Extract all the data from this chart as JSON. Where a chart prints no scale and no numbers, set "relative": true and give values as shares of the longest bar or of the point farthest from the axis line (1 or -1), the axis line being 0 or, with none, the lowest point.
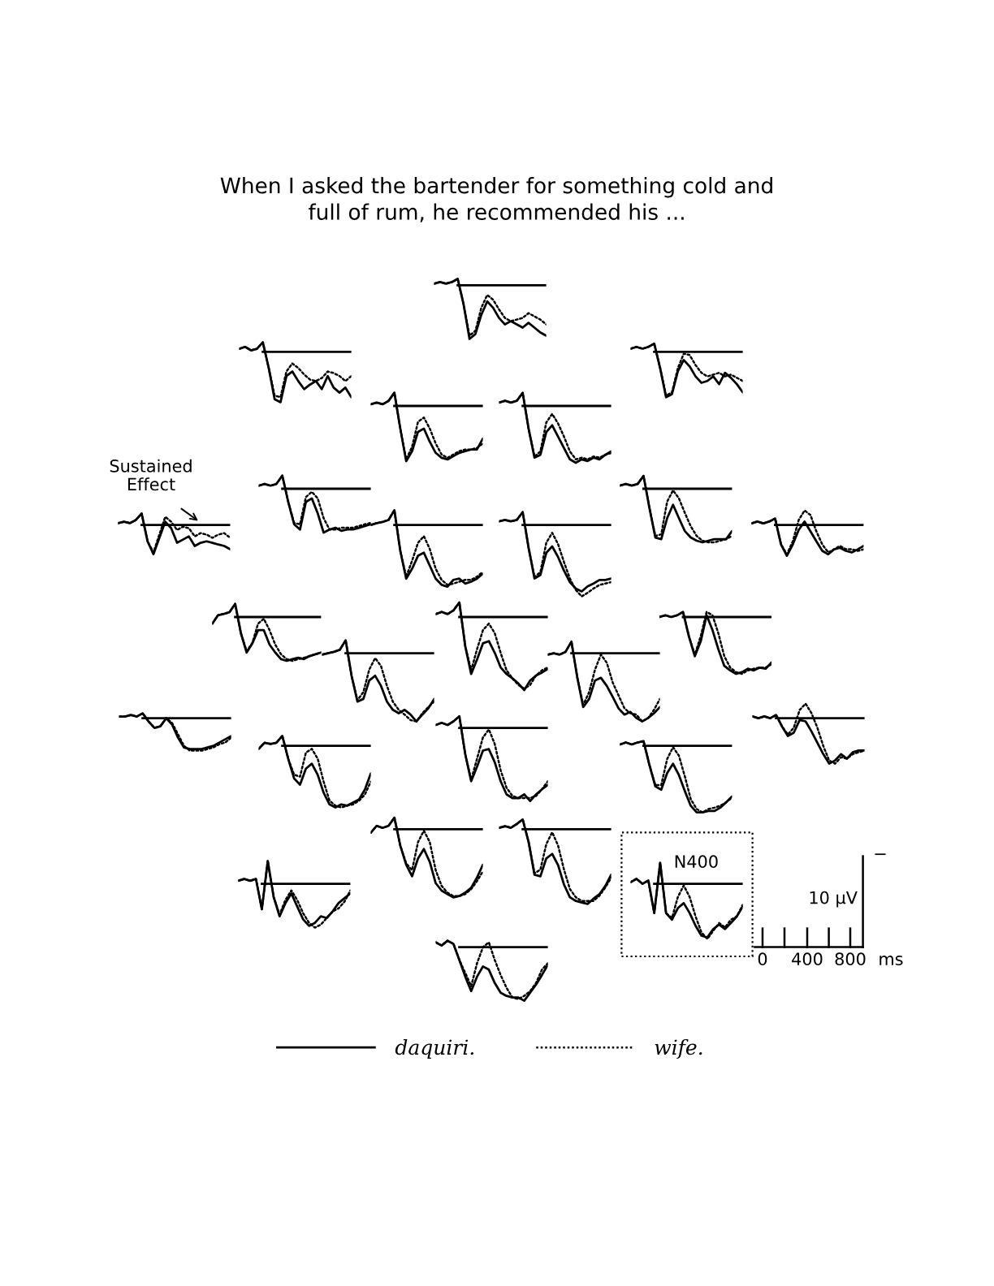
{
  "chart_data": [
    {
      "type": "line",
      "relative": true,
      "title": "When I asked the bartender for something cold and\nfull of rum, he recommended his ...",
      "legend": "bottom",
      "categories": [
        null,
        null,
        null,
        null,
        null,
        null,
        null,
        null,
        null,
        null,
        null,
        null,
        null,
        null,
        null,
        null,
        null,
        null,
        null,
        null
      ],
      "ref_lines": [
        {
          "axis": "y",
          "value": 0,
          "color": "#000000"
        }
      ],
      "series": [
        {
          "name": "daquiri.",
          "color": "#000000",
          "line_style": "solid",
          "values": [
            0.03,
            0.06,
            0.03,
            0.06,
            0.12,
            -0.36,
            -1,
            -0.91,
            -0.55,
            -0.3,
            -0.42,
            -0.61,
            -0.73,
            -0.67,
            -0.73,
            -0.79,
            -0.7,
            -0.79,
            -0.88,
            -0.94
          ]
        },
        {
          "name": "wife.",
          "color": "#000000",
          "line_style": "dotted",
          "values": [
            0.03,
            0.06,
            0.03,
            0.06,
            0.12,
            -0.36,
            -0.94,
            -0.85,
            -0.42,
            -0.18,
            -0.27,
            -0.45,
            -0.61,
            -0.67,
            -0.64,
            -0.61,
            -0.52,
            -0.58,
            -0.64,
            -0.73
          ]
        }
      ]
    },
    {
      "type": "line",
      "relative": true,
      "categories": [
        null,
        null,
        null,
        null,
        null,
        null,
        null,
        null,
        null,
        null,
        null,
        null,
        null,
        null,
        null,
        null,
        null,
        null,
        null,
        null
      ],
      "ref_lines": [
        {
          "axis": "y",
          "value": 0,
          "color": "#000000"
        }
      ],
      "series": [
        {
          "color": "#000000",
          "line_style": "solid",
          "values": [
            0.06,
            0.1,
            0.03,
            0.06,
            0.19,
            -0.32,
            -0.94,
            -1,
            -0.48,
            -0.39,
            -0.58,
            -0.74,
            -0.65,
            -0.58,
            -0.74,
            -0.48,
            -0.71,
            -0.81,
            -0.71,
            -0.9
          ]
        },
        {
          "color": "#000000",
          "line_style": "dotted",
          "values": [
            0.06,
            0.1,
            0.03,
            0.06,
            0.19,
            -0.32,
            -0.87,
            -0.9,
            -0.39,
            -0.23,
            -0.32,
            -0.45,
            -0.55,
            -0.58,
            -0.52,
            -0.39,
            -0.42,
            -0.48,
            -0.58,
            -0.48
          ]
        }
      ]
    },
    {
      "type": "line",
      "relative": true,
      "categories": [
        null,
        null,
        null,
        null,
        null,
        null,
        null,
        null,
        null,
        null,
        null,
        null,
        null,
        null,
        null,
        null,
        null,
        null,
        null,
        null
      ],
      "ref_lines": [
        {
          "axis": "y",
          "value": 0,
          "color": "#000000"
        }
      ],
      "series": [
        {
          "color": "#000000",
          "line_style": "solid",
          "values": [
            0.07,
            0.11,
            0.07,
            0.11,
            0.18,
            -0.36,
            -1,
            -0.93,
            -0.43,
            -0.18,
            -0.32,
            -0.54,
            -0.68,
            -0.64,
            -0.54,
            -0.71,
            -0.46,
            -0.57,
            -0.71,
            -0.89
          ]
        },
        {
          "color": "#000000",
          "line_style": "dotted",
          "values": [
            0.07,
            0.11,
            0.07,
            0.11,
            0.18,
            -0.36,
            -0.96,
            -0.89,
            -0.36,
            -0.04,
            -0.07,
            -0.29,
            -0.46,
            -0.54,
            -0.5,
            -0.46,
            -0.54,
            -0.5,
            -0.57,
            -0.64
          ]
        }
      ]
    },
    {
      "type": "line",
      "relative": true,
      "categories": [
        null,
        null,
        null,
        null,
        null,
        null,
        null,
        null,
        null,
        null,
        null,
        null,
        null,
        null,
        null,
        null,
        null,
        null,
        null,
        null
      ],
      "ref_lines": [
        {
          "axis": "y",
          "value": 0,
          "color": "#000000"
        }
      ],
      "series": [
        {
          "color": "#000000",
          "line_style": "solid",
          "values": [
            0.03,
            0.06,
            0.03,
            0.09,
            0.24,
            -0.41,
            -1,
            -0.82,
            -0.47,
            -0.41,
            -0.65,
            -0.85,
            -0.94,
            -0.97,
            -0.91,
            -0.85,
            -0.82,
            -0.79,
            -0.79,
            -0.59
          ]
        },
        {
          "color": "#000000",
          "line_style": "dotted",
          "values": [
            0.03,
            0.06,
            0.03,
            0.09,
            0.24,
            -0.41,
            -0.97,
            -0.74,
            -0.29,
            -0.21,
            -0.41,
            -0.68,
            -0.88,
            -0.94,
            -0.88,
            -0.82,
            -0.79,
            -0.79,
            -0.76,
            -0.68
          ]
        }
      ]
    },
    {
      "type": "line",
      "relative": true,
      "categories": [
        null,
        null,
        null,
        null,
        null,
        null,
        null,
        null,
        null,
        null,
        null,
        null,
        null,
        null,
        null,
        null,
        null,
        null,
        null,
        null
      ],
      "ref_lines": [
        {
          "axis": "y",
          "value": 0,
          "color": "#000000"
        }
      ],
      "series": [
        {
          "color": "#000000",
          "line_style": "solid",
          "values": [
            0.06,
            0.09,
            0.06,
            0.09,
            0.23,
            -0.4,
            -0.91,
            -0.86,
            -0.46,
            -0.34,
            -0.54,
            -0.74,
            -0.94,
            -1,
            -0.94,
            -0.97,
            -0.91,
            -0.94,
            -0.86,
            -0.8
          ]
        },
        {
          "color": "#000000",
          "line_style": "dotted",
          "values": [
            0.06,
            0.09,
            0.06,
            0.09,
            0.23,
            -0.4,
            -0.89,
            -0.8,
            -0.29,
            -0.14,
            -0.31,
            -0.54,
            -0.8,
            -0.94,
            -0.91,
            -0.94,
            -0.89,
            -0.91,
            -0.86,
            -0.83
          ]
        }
      ]
    },
    {
      "type": "line",
      "relative": true,
      "categories": [
        null,
        null,
        null,
        null,
        null,
        null,
        null,
        null,
        null,
        null,
        null,
        null,
        null,
        null,
        null,
        null,
        null,
        null,
        null,
        null
      ],
      "ref_lines": [
        {
          "axis": "y",
          "value": 0,
          "color": "#000000"
        }
      ],
      "series": [
        {
          "color": "#000000",
          "line_style": "solid",
          "values": [
            0.07,
            0.11,
            0.07,
            0.11,
            0.3,
            -0.3,
            -0.81,
            -0.93,
            -0.3,
            -0.22,
            -0.56,
            -1,
            -0.93,
            -0.89,
            -0.96,
            -0.93,
            -0.93,
            -0.89,
            -0.85,
            -0.81
          ]
        },
        {
          "color": "#000000",
          "line_style": "dotted",
          "values": [
            0.07,
            0.11,
            0.07,
            0.11,
            0.3,
            -0.3,
            -0.78,
            -0.81,
            -0.19,
            -0.07,
            -0.22,
            -0.67,
            -0.93,
            -0.93,
            -0.89,
            -0.89,
            -0.89,
            -0.85,
            -0.81,
            -0.78
          ]
        }
      ]
    },
    {
      "type": "line",
      "relative": true,
      "categories": [
        null,
        null,
        null,
        null,
        null,
        null,
        null,
        null,
        null,
        null,
        null,
        null,
        null,
        null,
        null,
        null,
        null,
        null,
        null,
        null
      ],
      "ref_lines": [
        {
          "axis": "y",
          "value": 0,
          "color": "#000000"
        }
      ],
      "series": [
        {
          "color": "#000000",
          "line_style": "solid",
          "values": [
            0.06,
            0.09,
            0.06,
            0.09,
            0.24,
            -0.36,
            -0.91,
            -0.94,
            -0.55,
            -0.3,
            -0.55,
            -0.79,
            -0.91,
            -0.97,
            -1,
            -0.97,
            -0.94,
            -0.94,
            -0.94,
            -0.79
          ]
        },
        {
          "color": "#000000",
          "line_style": "dotted",
          "values": [
            0.06,
            0.09,
            0.06,
            0.09,
            0.24,
            -0.36,
            -0.88,
            -0.85,
            -0.24,
            -0.03,
            -0.18,
            -0.45,
            -0.7,
            -0.88,
            -0.97,
            -1,
            -1,
            -0.97,
            -0.94,
            -0.88
          ]
        }
      ]
    },
    {
      "type": "line",
      "relative": true,
      "annotations": [
        "Sustained\nEffect"
      ],
      "categories": [
        null,
        null,
        null,
        null,
        null,
        null,
        null,
        null,
        null,
        null,
        null,
        null,
        null,
        null,
        null,
        null,
        null,
        null,
        null,
        null
      ],
      "ref_lines": [
        {
          "axis": "y",
          "value": 0,
          "color": "#000000"
        }
      ],
      "series": [
        {
          "color": "#000000",
          "line_style": "solid",
          "values": [
            0.06,
            0.11,
            0.06,
            0.17,
            0.39,
            -0.56,
            -1,
            -0.44,
            0.11,
            -0.11,
            -0.61,
            -0.5,
            -0.39,
            -0.72,
            -0.61,
            -0.56,
            -0.61,
            -0.67,
            -0.72,
            -0.83
          ]
        },
        {
          "color": "#000000",
          "line_style": "dotted",
          "values": [
            0.06,
            0.11,
            0.06,
            0.17,
            0.39,
            -0.56,
            -0.94,
            -0.33,
            0.28,
            0.11,
            -0.17,
            -0.06,
            -0.11,
            -0.39,
            -0.28,
            -0.33,
            -0.44,
            -0.33,
            -0.28,
            -0.44
          ]
        }
      ]
    },
    {
      "type": "line",
      "relative": true,
      "categories": [
        null,
        null,
        null,
        null,
        null,
        null,
        null,
        null,
        null,
        null,
        null,
        null,
        null,
        null,
        null,
        null,
        null,
        null,
        null,
        null
      ],
      "ref_lines": [
        {
          "axis": "y",
          "value": 0,
          "color": "#000000"
        }
      ],
      "series": [
        {
          "color": "#000000",
          "line_style": "solid",
          "values": [
            0,
            0.03,
            0.05,
            0.08,
            0.24,
            -0.42,
            -0.87,
            -0.71,
            -0.5,
            -0.45,
            -0.66,
            -0.87,
            -0.97,
            -1,
            -0.89,
            -0.87,
            -0.95,
            -0.92,
            -0.87,
            -0.79
          ]
        },
        {
          "color": "#000000",
          "line_style": "dotted",
          "values": [
            0,
            0.03,
            0.05,
            0.08,
            0.24,
            -0.42,
            -0.84,
            -0.58,
            -0.29,
            -0.18,
            -0.39,
            -0.71,
            -0.89,
            -0.97,
            -0.95,
            -0.92,
            -0.89,
            -0.89,
            -0.84,
            -0.76
          ]
        }
      ]
    },
    {
      "type": "line",
      "relative": true,
      "categories": [
        null,
        null,
        null,
        null,
        null,
        null,
        null,
        null,
        null,
        null,
        null,
        null,
        null,
        null,
        null,
        null,
        null,
        null,
        null,
        null
      ],
      "ref_lines": [
        {
          "axis": "y",
          "value": 0,
          "color": "#000000"
        }
      ],
      "series": [
        {
          "color": "#000000",
          "line_style": "solid",
          "values": [
            0.05,
            0.07,
            0.05,
            0.07,
            0.18,
            -0.32,
            -0.75,
            -0.7,
            -0.39,
            -0.3,
            -0.45,
            -0.64,
            -0.8,
            -0.89,
            -0.93,
            -0.86,
            -0.82,
            -0.77,
            -0.77,
            -0.75
          ]
        },
        {
          "color": "#000000",
          "line_style": "dotted",
          "values": [
            0.05,
            0.07,
            0.05,
            0.07,
            0.18,
            -0.32,
            -0.73,
            -0.66,
            -0.25,
            -0.11,
            -0.27,
            -0.52,
            -0.75,
            -0.91,
            -1,
            -0.95,
            -0.89,
            -0.84,
            -0.82,
            -0.8
          ]
        }
      ]
    },
    {
      "type": "line",
      "relative": true,
      "categories": [
        null,
        null,
        null,
        null,
        null,
        null,
        null,
        null,
        null,
        null,
        null,
        null,
        null,
        null,
        null,
        null,
        null,
        null,
        null,
        null
      ],
      "ref_lines": [
        {
          "axis": "y",
          "value": 0,
          "color": "#000000"
        }
      ],
      "series": [
        {
          "color": "#000000",
          "line_style": "solid",
          "values": [
            0.05,
            0.11,
            0.05,
            0.11,
            0.21,
            -0.63,
            -1,
            -0.63,
            -0.16,
            0.11,
            -0.21,
            -0.53,
            -0.84,
            -0.95,
            -0.79,
            -0.74,
            -0.84,
            -0.89,
            -0.79,
            -0.68
          ]
        },
        {
          "color": "#000000",
          "line_style": "dotted",
          "values": [
            0.05,
            0.11,
            0.05,
            0.11,
            0.21,
            -0.63,
            -0.95,
            -0.53,
            0.16,
            0.47,
            0.32,
            -0.21,
            -0.63,
            -0.89,
            -0.79,
            -0.68,
            -0.79,
            -0.79,
            -0.84,
            -0.79
          ]
        }
      ]
    },
    {
      "type": "line",
      "relative": true,
      "categories": [
        null,
        null,
        null,
        null,
        null,
        null,
        null,
        null,
        null,
        null,
        null,
        null,
        null,
        null,
        null,
        null,
        null,
        null,
        null,
        null
      ],
      "ref_lines": [
        {
          "axis": "y",
          "value": 0,
          "color": "#000000"
        }
      ],
      "series": [
        {
          "color": "#000000",
          "line_style": "solid",
          "values": [
            -0.15,
            0.04,
            0.07,
            0.11,
            0.3,
            -0.37,
            -0.81,
            -0.6,
            -0.3,
            -0.3,
            -0.63,
            -0.81,
            -0.96,
            -1,
            -0.96,
            -0.93,
            -0.96,
            -0.89,
            -0.85,
            -0.81
          ]
        },
        {
          "color": "#000000",
          "line_style": "dotted",
          "values": [
            -0.15,
            0.04,
            0.07,
            0.11,
            0.3,
            -0.37,
            -0.78,
            -0.59,
            -0.15,
            -0.04,
            -0.3,
            -0.63,
            -0.85,
            -0.96,
            -1,
            -0.96,
            -0.93,
            -0.89,
            -0.85,
            -0.81
          ]
        }
      ]
    },
    {
      "type": "line",
      "relative": true,
      "categories": [
        null,
        null,
        null,
        null,
        null,
        null,
        null,
        null,
        null,
        null,
        null,
        null,
        null,
        null,
        null,
        null,
        null,
        null,
        null,
        null
      ],
      "ref_lines": [
        {
          "axis": "y",
          "value": 0,
          "color": "#000000"
        }
      ],
      "series": [
        {
          "color": "#000000",
          "line_style": "solid",
          "values": [
            0.04,
            0.07,
            0.04,
            0.09,
            0.2,
            -0.4,
            -0.78,
            -0.58,
            -0.36,
            -0.33,
            -0.49,
            -0.69,
            -0.78,
            -0.84,
            -0.91,
            -1,
            -0.87,
            -0.8,
            -0.76,
            -0.71
          ]
        },
        {
          "color": "#000000",
          "line_style": "dotted",
          "values": [
            0.04,
            0.07,
            0.04,
            0.09,
            0.2,
            -0.4,
            -0.73,
            -0.44,
            -0.18,
            -0.09,
            -0.22,
            -0.49,
            -0.73,
            -0.84,
            -0.93,
            -0.98,
            -0.93,
            -0.8,
            -0.73,
            -0.69
          ]
        }
      ]
    },
    {
      "type": "line",
      "relative": true,
      "categories": [
        null,
        null,
        null,
        null,
        null,
        null,
        null,
        null,
        null,
        null,
        null,
        null,
        null,
        null,
        null,
        null,
        null,
        null,
        null,
        null
      ],
      "ref_lines": [
        {
          "axis": "y",
          "value": 0,
          "color": "#000000"
        }
      ],
      "series": [
        {
          "color": "#000000",
          "line_style": "solid",
          "values": [
            0,
            0.03,
            0,
            0.03,
            0.09,
            -0.34,
            -0.69,
            -0.43,
            0.03,
            -0.23,
            -0.57,
            -0.86,
            -0.94,
            -1,
            -0.97,
            -0.91,
            -0.94,
            -0.89,
            -0.91,
            -0.8
          ]
        },
        {
          "color": "#000000",
          "line_style": "dotted",
          "values": [
            0,
            0.03,
            0,
            0.03,
            0.09,
            -0.34,
            -0.66,
            -0.34,
            0.09,
            0.03,
            -0.29,
            -0.69,
            -0.89,
            -0.97,
            -1,
            -0.94,
            -0.91,
            -0.89,
            -0.89,
            -0.83
          ]
        }
      ]
    },
    {
      "type": "line",
      "relative": true,
      "categories": [
        null,
        null,
        null,
        null,
        null,
        null,
        null,
        null,
        null,
        null,
        null,
        null,
        null,
        null,
        null,
        null,
        null,
        null,
        null,
        null
      ],
      "ref_lines": [
        {
          "axis": "y",
          "value": 0,
          "color": "#000000"
        }
      ],
      "series": [
        {
          "color": "#000000",
          "line_style": "solid",
          "values": [
            -0.02,
            0,
            0.02,
            0.05,
            0.19,
            -0.33,
            -0.71,
            -0.67,
            -0.4,
            -0.33,
            -0.48,
            -0.71,
            -0.83,
            -0.88,
            -0.83,
            -0.9,
            -1,
            -0.9,
            -0.81,
            -0.67
          ]
        },
        {
          "color": "#000000",
          "line_style": "dotted",
          "values": [
            -0.02,
            0,
            0.02,
            0.05,
            0.19,
            -0.33,
            -0.69,
            -0.57,
            -0.24,
            -0.07,
            -0.19,
            -0.48,
            -0.71,
            -0.83,
            -0.9,
            -0.98,
            -1,
            -0.88,
            -0.79,
            -0.71
          ]
        }
      ]
    },
    {
      "type": "line",
      "relative": true,
      "categories": [
        null,
        null,
        null,
        null,
        null,
        null,
        null,
        null,
        null,
        null,
        null,
        null,
        null,
        null,
        null,
        null,
        null,
        null,
        null,
        null
      ],
      "ref_lines": [
        {
          "axis": "y",
          "value": 0,
          "color": "#000000"
        }
      ],
      "series": [
        {
          "color": "#000000",
          "line_style": "solid",
          "values": [
            -0.02,
            0,
            -0.02,
            0.02,
            0.17,
            -0.36,
            -0.79,
            -0.67,
            -0.4,
            -0.36,
            -0.48,
            -0.64,
            -0.81,
            -0.9,
            -0.86,
            -0.95,
            -1,
            -0.95,
            -0.88,
            -0.79
          ]
        },
        {
          "color": "#000000",
          "line_style": "dotted",
          "values": [
            -0.02,
            0,
            -0.02,
            0.02,
            0.17,
            -0.36,
            -0.76,
            -0.57,
            -0.24,
            -0.02,
            -0.14,
            -0.43,
            -0.62,
            -0.81,
            -0.88,
            -0.9,
            -1,
            -0.95,
            -0.83,
            -0.67
          ]
        }
      ]
    },
    {
      "type": "line",
      "relative": true,
      "categories": [
        null,
        null,
        null,
        null,
        null,
        null,
        null,
        null,
        null,
        null,
        null,
        null,
        null,
        null,
        null,
        null,
        null,
        null,
        null,
        null
      ],
      "ref_lines": [
        {
          "axis": "y",
          "value": 0,
          "color": "#000000"
        }
      ],
      "series": [
        {
          "color": "#000000",
          "line_style": "solid",
          "values": [
            0.05,
            0.05,
            0.1,
            0.05,
            0.15,
            -0.1,
            -0.3,
            -0.25,
            0,
            -0.2,
            -0.6,
            -0.9,
            -0.95,
            -0.95,
            -0.95,
            -0.9,
            -0.85,
            -0.75,
            -0.65,
            -0.55
          ]
        },
        {
          "color": "#000000",
          "line_style": "dotted",
          "values": [
            0.05,
            0.05,
            0.1,
            0.05,
            0.15,
            -0.1,
            -0.3,
            -0.25,
            0,
            -0.15,
            -0.5,
            -0.85,
            -1,
            -1,
            -1,
            -0.95,
            -0.9,
            -0.8,
            -0.75,
            -0.6
          ]
        }
      ]
    },
    {
      "type": "line",
      "relative": true,
      "categories": [
        null,
        null,
        null,
        null,
        null,
        null,
        null,
        null,
        null,
        null,
        null,
        null,
        null,
        null,
        null,
        null,
        null,
        null,
        null,
        null
      ],
      "ref_lines": [
        {
          "axis": "y",
          "value": 0,
          "color": "#000000"
        }
      ],
      "series": [
        {
          "color": "#000000",
          "line_style": "solid",
          "values": [
            0.04,
            0,
            0.04,
            0,
            0.07,
            -0.18,
            -0.39,
            -0.32,
            -0.04,
            -0.07,
            -0.29,
            -0.54,
            -0.79,
            -1,
            -0.93,
            -0.79,
            -0.89,
            -0.75,
            -0.71,
            -0.71
          ]
        },
        {
          "color": "#000000",
          "line_style": "dotted",
          "values": [
            0.04,
            0,
            0.04,
            0,
            0.07,
            -0.18,
            -0.36,
            -0.21,
            0.18,
            0.32,
            0.11,
            -0.21,
            -0.61,
            -0.93,
            -1,
            -0.86,
            -0.89,
            -0.79,
            -0.75,
            -0.71
          ]
        }
      ]
    },
    {
      "type": "line",
      "relative": true,
      "categories": [
        null,
        null,
        null,
        null,
        null,
        null,
        null,
        null,
        null,
        null,
        null,
        null,
        null,
        null,
        null,
        null,
        null,
        null,
        null,
        null
      ],
      "ref_lines": [
        {
          "axis": "y",
          "value": 0,
          "color": "#000000"
        }
      ],
      "series": [
        {
          "color": "#000000",
          "line_style": "solid",
          "values": [
            0.04,
            0.07,
            0.04,
            0.09,
            0.16,
            -0.36,
            -0.73,
            -0.53,
            -0.31,
            -0.29,
            -0.47,
            -0.73,
            -0.91,
            -0.96,
            -0.96,
            -0.91,
            -1,
            -0.91,
            -0.84,
            -0.78
          ]
        },
        {
          "color": "#000000",
          "line_style": "dotted",
          "values": [
            0.04,
            0.07,
            0.04,
            0.09,
            0.16,
            -0.36,
            -0.71,
            -0.42,
            -0.13,
            -0.02,
            -0.22,
            -0.58,
            -0.82,
            -0.93,
            -0.96,
            -0.96,
            -0.96,
            -0.93,
            -0.84,
            -0.73
          ]
        }
      ]
    },
    {
      "type": "line",
      "relative": true,
      "categories": [
        null,
        null,
        null,
        null,
        null,
        null,
        null,
        null,
        null,
        null,
        null,
        null,
        null,
        null,
        null,
        null,
        null,
        null,
        null,
        null
      ],
      "ref_lines": [
        {
          "axis": "y",
          "value": 0,
          "color": "#000000"
        }
      ],
      "series": [
        {
          "color": "#000000",
          "line_style": "solid",
          "values": [
            -0.05,
            0.05,
            0.03,
            0.05,
            0.16,
            -0.21,
            -0.53,
            -0.63,
            -0.37,
            -0.29,
            -0.47,
            -0.76,
            -0.95,
            -1,
            -0.95,
            -0.97,
            -0.92,
            -0.87,
            -0.71,
            -0.45
          ]
        },
        {
          "color": "#000000",
          "line_style": "dotted",
          "values": [
            -0.05,
            0.05,
            0.03,
            0.05,
            0.16,
            -0.21,
            -0.47,
            -0.5,
            -0.11,
            -0.05,
            -0.21,
            -0.58,
            -0.89,
            -0.97,
            -1,
            -0.97,
            -0.95,
            -0.89,
            -0.79,
            -0.58
          ]
        }
      ]
    },
    {
      "type": "line",
      "relative": true,
      "categories": [
        null,
        null,
        null,
        null,
        null,
        null,
        null,
        null,
        null,
        null,
        null,
        null,
        null,
        null,
        null,
        null,
        null,
        null,
        null,
        null
      ],
      "ref_lines": [
        {
          "axis": "y",
          "value": 0,
          "color": "#000000"
        }
      ],
      "series": [
        {
          "color": "#000000",
          "line_style": "solid",
          "values": [
            0.02,
            0.05,
            0.02,
            0.05,
            0.07,
            -0.29,
            -0.61,
            -0.66,
            -0.41,
            -0.27,
            -0.44,
            -0.68,
            -0.9,
            -1,
            -1,
            -0.98,
            -0.98,
            -0.93,
            -0.85,
            -0.76
          ]
        },
        {
          "color": "#000000",
          "line_style": "dotted",
          "values": [
            0.02,
            0.05,
            0.02,
            0.05,
            0.07,
            -0.29,
            -0.59,
            -0.59,
            -0.2,
            -0.02,
            -0.15,
            -0.46,
            -0.8,
            -0.95,
            -1,
            -0.95,
            -0.93,
            -0.9,
            -0.85,
            -0.78
          ]
        }
      ]
    },
    {
      "type": "line",
      "relative": true,
      "categories": [
        null,
        null,
        null,
        null,
        null,
        null,
        null,
        null,
        null,
        null,
        null,
        null,
        null,
        null,
        null,
        null,
        null,
        null,
        null,
        null
      ],
      "ref_lines": [
        {
          "axis": "y",
          "value": 0,
          "color": "#000000"
        }
      ],
      "series": [
        {
          "color": "#000000",
          "line_style": "solid",
          "values": [
            -0.05,
            0.05,
            0.02,
            0.05,
            0.17,
            -0.24,
            -0.52,
            -0.69,
            -0.43,
            -0.29,
            -0.48,
            -0.79,
            -0.9,
            -0.95,
            -1,
            -0.98,
            -0.93,
            -0.86,
            -0.71,
            -0.52
          ]
        },
        {
          "color": "#000000",
          "line_style": "dotted",
          "values": [
            -0.05,
            0.05,
            0.02,
            0.05,
            0.17,
            -0.24,
            -0.5,
            -0.6,
            -0.19,
            -0.02,
            -0.19,
            -0.6,
            -0.83,
            -0.93,
            -0.98,
            -0.98,
            -0.95,
            -0.88,
            -0.76,
            -0.62
          ]
        }
      ]
    },
    {
      "type": "line",
      "relative": true,
      "categories": [
        null,
        null,
        null,
        null,
        null,
        null,
        null,
        null,
        null,
        null,
        null,
        null,
        null,
        null,
        null,
        null,
        null,
        null,
        null,
        null
      ],
      "ref_lines": [
        {
          "axis": "y",
          "value": 0,
          "color": "#000000"
        }
      ],
      "series": [
        {
          "color": "#000000",
          "line_style": "solid",
          "values": [
            0.02,
            0.04,
            0.02,
            0.07,
            0.13,
            -0.17,
            -0.61,
            -0.63,
            -0.39,
            -0.33,
            -0.48,
            -0.74,
            -0.91,
            -0.96,
            -0.98,
            -1,
            -0.93,
            -0.87,
            -0.76,
            -0.61
          ]
        },
        {
          "color": "#000000",
          "line_style": "dotted",
          "values": [
            0.02,
            0.04,
            0.02,
            0.07,
            0.13,
            -0.17,
            -0.59,
            -0.54,
            -0.2,
            -0.04,
            -0.22,
            -0.54,
            -0.8,
            -0.91,
            -0.96,
            -0.96,
            -0.96,
            -0.89,
            -0.78,
            -0.65
          ]
        }
      ]
    },
    {
      "type": "line",
      "relative": true,
      "categories": [
        null,
        null,
        null,
        null,
        null,
        null,
        null,
        null,
        null,
        null,
        null,
        null,
        null,
        null,
        null,
        null,
        null,
        null,
        null,
        null
      ],
      "ref_lines": [
        {
          "axis": "y",
          "value": 0,
          "color": "#000000"
        }
      ],
      "series": [
        {
          "color": "#000000",
          "line_style": "solid",
          "values": [
            0.07,
            0.11,
            0.07,
            0.11,
            -0.58,
            0.52,
            -0.3,
            -0.74,
            -0.44,
            -0.22,
            -0.52,
            -0.81,
            -0.96,
            -0.89,
            -0.74,
            -0.78,
            -0.63,
            -0.44,
            -0.33,
            -0.22
          ]
        },
        {
          "color": "#000000",
          "line_style": "dotted",
          "values": [
            0.07,
            0.11,
            0.07,
            0.11,
            -0.58,
            0.52,
            -0.3,
            -0.7,
            -0.37,
            -0.15,
            -0.37,
            -0.67,
            -0.89,
            -1,
            -0.93,
            -0.78,
            -0.63,
            -0.56,
            -0.41,
            -0.15
          ]
        }
      ]
    },
    {
      "type": "line",
      "relative": true,
      "annotations": [
        "N400"
      ],
      "categories": [
        null,
        null,
        null,
        null,
        null,
        null,
        null,
        null,
        null,
        null,
        null,
        null,
        null,
        null,
        null,
        null,
        null,
        null,
        null,
        null
      ],
      "ref_lines": [
        {
          "axis": "y",
          "value": 0,
          "color": "#000000"
        }
      ],
      "series": [
        {
          "color": "#000000",
          "line_style": "solid",
          "values": [
            0.03,
            0.09,
            0,
            0.06,
            -0.53,
            0.38,
            -0.53,
            -0.65,
            -0.44,
            -0.35,
            -0.53,
            -0.76,
            -0.94,
            -0.97,
            -0.82,
            -0.74,
            -0.82,
            -0.71,
            -0.59,
            -0.41
          ]
        },
        {
          "color": "#000000",
          "line_style": "dotted",
          "values": [
            0.03,
            0.09,
            0,
            0.06,
            -0.53,
            0.38,
            -0.53,
            -0.62,
            -0.24,
            -0.03,
            -0.24,
            -0.59,
            -0.88,
            -1,
            -0.85,
            -0.71,
            -0.79,
            -0.65,
            -0.59,
            -0.38
          ]
        }
      ]
    },
    {
      "type": "line",
      "relative": true,
      "categories": [
        null,
        null,
        null,
        null,
        null,
        null,
        null,
        null,
        null,
        null,
        null,
        null,
        null,
        null,
        null,
        null,
        null,
        null,
        null,
        null
      ],
      "ref_lines": [
        {
          "axis": "y",
          "value": 0,
          "color": "#000000"
        }
      ],
      "series": [
        {
          "color": "#000000",
          "line_style": "solid",
          "values": [
            0.09,
            0.03,
            0.12,
            0.06,
            -0.24,
            -0.55,
            -0.82,
            -0.55,
            -0.36,
            -0.42,
            -0.67,
            -0.85,
            -0.91,
            -0.94,
            -0.94,
            -1,
            -0.85,
            -0.7,
            -0.52,
            -0.33
          ]
        },
        {
          "color": "#000000",
          "line_style": "dotted",
          "values": [
            0.09,
            0.03,
            0.12,
            0.06,
            -0.24,
            -0.48,
            -0.73,
            -0.3,
            0,
            0.09,
            -0.24,
            -0.52,
            -0.76,
            -0.94,
            -0.97,
            -0.91,
            -0.82,
            -0.67,
            -0.42,
            -0.3
          ]
        }
      ]
    },
    {
      "type": "other",
      "annotations": [
        "0",
        "400",
        "800",
        "ms",
        "10 µV",
        "−"
      ]
    }
  ]
}
